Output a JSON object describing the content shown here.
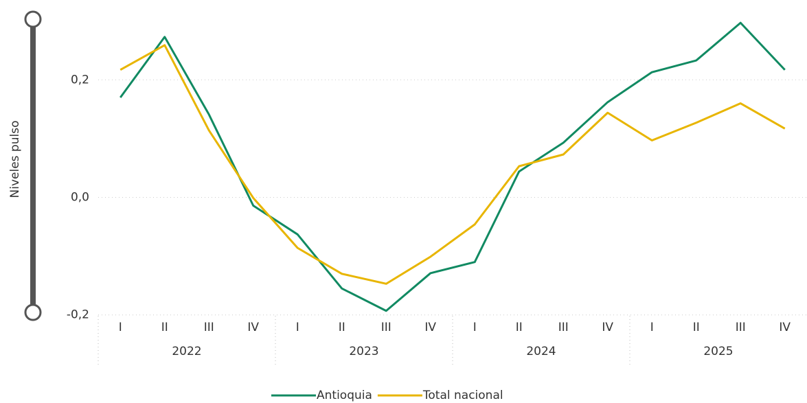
{
  "chart_data": {
    "type": "line",
    "y_label": "Niveles pulso",
    "categories": [
      "I",
      "II",
      "III",
      "IV",
      "I",
      "II",
      "III",
      "IV",
      "I",
      "II",
      "III",
      "IV",
      "I",
      "II",
      "III",
      "IV"
    ],
    "groups": [
      "2022",
      "2023",
      "2024",
      "2025"
    ],
    "series": [
      {
        "name": "Antioquia",
        "color": "#118a62",
        "values": [
          0.17,
          0.273,
          0.141,
          -0.014,
          -0.063,
          -0.155,
          -0.193,
          -0.129,
          -0.11,
          0.044,
          0.093,
          0.162,
          0.213,
          0.233,
          0.297,
          0.217
        ]
      },
      {
        "name": "Total nacional",
        "color": "#e8b500",
        "values": [
          0.217,
          0.259,
          0.114,
          -0.001,
          -0.086,
          -0.13,
          -0.147,
          -0.101,
          -0.046,
          0.053,
          0.073,
          0.144,
          0.097,
          0.127,
          0.16,
          0.117
        ]
      }
    ],
    "ylim": [
      -0.205,
      0.33
    ],
    "yticks": [
      {
        "value": -0.2,
        "label": "-0,2"
      },
      {
        "value": 0,
        "label": "0,0"
      },
      {
        "value": 0.2,
        "label": "0,2"
      }
    ],
    "grid": true
  }
}
